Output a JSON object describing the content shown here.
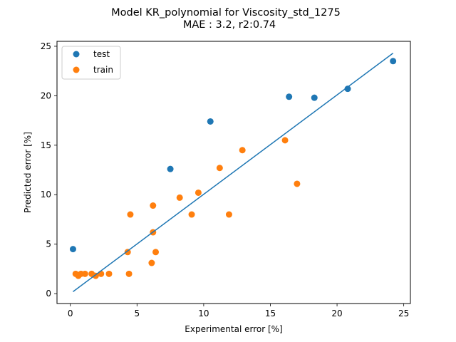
{
  "chart_data": {
    "type": "scatter",
    "title": "Model KR_polynomial for Viscosity_std_1275",
    "subtitle": "MAE :  3.2, r2:0.74",
    "xlabel": "Experimental error [%]",
    "ylabel": "Predicted error [%]",
    "xlim": [
      -1.0,
      25.5
    ],
    "ylim": [
      -1.0,
      25.5
    ],
    "xticks": [
      0,
      5,
      10,
      15,
      20,
      25
    ],
    "yticks": [
      0,
      5,
      10,
      15,
      20,
      25
    ],
    "xtick_labels": [
      "0",
      "5",
      "10",
      "15",
      "20",
      "25"
    ],
    "ytick_labels": [
      "0",
      "5",
      "10",
      "15",
      "20",
      "25"
    ],
    "grid": false,
    "legend_position": "top-left",
    "series": [
      {
        "name": "test",
        "color": "#1f77b4",
        "points": [
          [
            0.2,
            4.5
          ],
          [
            7.5,
            12.6
          ],
          [
            10.5,
            17.4
          ],
          [
            16.4,
            19.9
          ],
          [
            18.3,
            19.8
          ],
          [
            20.8,
            20.7
          ],
          [
            24.2,
            23.5
          ]
        ]
      },
      {
        "name": "train",
        "color": "#ff7f0e",
        "points": [
          [
            0.4,
            2.0
          ],
          [
            0.6,
            1.8
          ],
          [
            0.8,
            2.0
          ],
          [
            1.1,
            2.0
          ],
          [
            1.6,
            2.0
          ],
          [
            1.9,
            1.8
          ],
          [
            2.3,
            2.0
          ],
          [
            2.9,
            2.0
          ],
          [
            4.3,
            4.2
          ],
          [
            4.4,
            2.0
          ],
          [
            4.5,
            8.0
          ],
          [
            6.1,
            3.1
          ],
          [
            6.2,
            8.9
          ],
          [
            6.2,
            6.2
          ],
          [
            6.4,
            4.2
          ],
          [
            8.2,
            9.7
          ],
          [
            9.1,
            8.0
          ],
          [
            9.6,
            10.2
          ],
          [
            11.2,
            12.7
          ],
          [
            11.9,
            8.0
          ],
          [
            12.9,
            14.5
          ],
          [
            16.1,
            15.5
          ],
          [
            17.0,
            11.1
          ]
        ]
      }
    ],
    "fit_line": {
      "color": "#1f77b4",
      "points": [
        [
          0.2,
          0.2
        ],
        [
          24.2,
          24.3
        ]
      ]
    }
  }
}
